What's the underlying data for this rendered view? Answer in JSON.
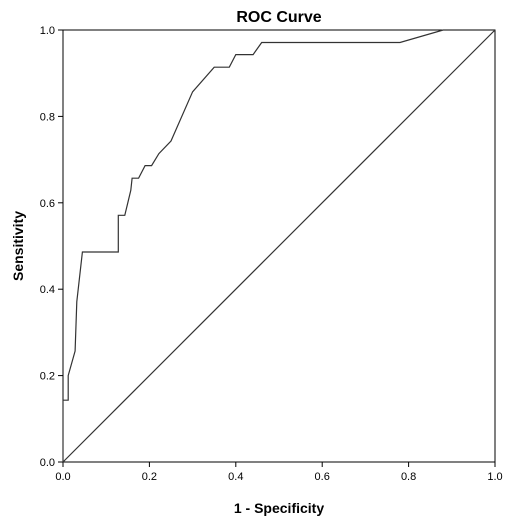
{
  "chart_data": {
    "type": "line",
    "title": "ROC Curve",
    "xlabel": "1 - Specificity",
    "ylabel": "Sensitivity",
    "xlim": [
      0.0,
      1.0
    ],
    "ylim": [
      0.0,
      1.0
    ],
    "x_ticks": [
      "0.0",
      "0.2",
      "0.4",
      "0.6",
      "0.8",
      "1.0"
    ],
    "y_ticks": [
      "0.0",
      "0.2",
      "0.4",
      "0.6",
      "0.8",
      "1.0"
    ],
    "grid": false,
    "legend": "none",
    "series": [
      {
        "line_color": "#333333",
        "points": [
          [
            0.0,
            0.0
          ],
          [
            0.0,
            0.143
          ],
          [
            0.012,
            0.143
          ],
          [
            0.012,
            0.2
          ],
          [
            0.028,
            0.257
          ],
          [
            0.032,
            0.371
          ],
          [
            0.045,
            0.486
          ],
          [
            0.128,
            0.486
          ],
          [
            0.128,
            0.571
          ],
          [
            0.143,
            0.571
          ],
          [
            0.157,
            0.629
          ],
          [
            0.16,
            0.657
          ],
          [
            0.175,
            0.657
          ],
          [
            0.19,
            0.686
          ],
          [
            0.205,
            0.686
          ],
          [
            0.222,
            0.714
          ],
          [
            0.25,
            0.743
          ],
          [
            0.3,
            0.857
          ],
          [
            0.35,
            0.914
          ],
          [
            0.385,
            0.914
          ],
          [
            0.4,
            0.943
          ],
          [
            0.44,
            0.943
          ],
          [
            0.46,
            0.971
          ],
          [
            0.78,
            0.971
          ],
          [
            0.88,
            1.0
          ],
          [
            1.0,
            1.0
          ]
        ]
      },
      {
        "line_color": "#333333",
        "points": [
          [
            0.0,
            0.0
          ],
          [
            1.0,
            1.0
          ]
        ]
      }
    ]
  }
}
